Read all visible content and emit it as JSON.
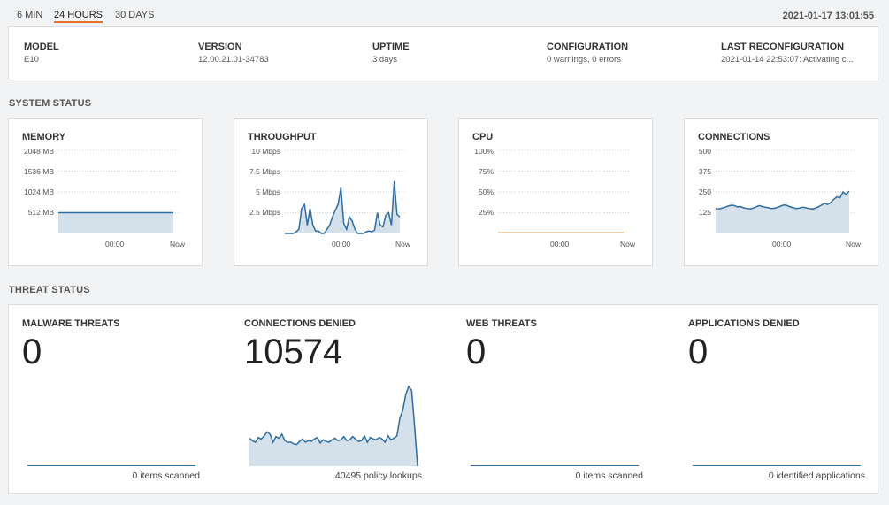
{
  "tabs": [
    {
      "label": "6 MIN",
      "active": false
    },
    {
      "label": "24 HOURS",
      "active": true
    },
    {
      "label": "30 DAYS",
      "active": false
    }
  ],
  "timestamp": "2021-01-17 13:01:55",
  "info": {
    "model": {
      "label": "MODEL",
      "value": "E10"
    },
    "version": {
      "label": "VERSION",
      "value": "12.00.21.01-34783"
    },
    "uptime": {
      "label": "UPTIME",
      "value": "3 days"
    },
    "configuration": {
      "label": "CONFIGURATION",
      "value": "0 warnings, 0 errors"
    },
    "last_reconfiguration": {
      "label": "LAST RECONFIGURATION",
      "value": "2021-01-14 22:53:07: Activating c..."
    }
  },
  "system_status": {
    "title": "SYSTEM STATUS",
    "memory": {
      "title": "MEMORY",
      "yticks": [
        "2048 MB",
        "1536 MB",
        "1024 MB",
        "512 MB"
      ],
      "xticks": [
        "00:00",
        "Now"
      ]
    },
    "throughput": {
      "title": "THROUGHPUT",
      "yticks": [
        "10 Mbps",
        "7.5 Mbps",
        "5 Mbps",
        "2.5 Mbps"
      ],
      "xticks": [
        "00:00",
        "Now"
      ]
    },
    "cpu": {
      "title": "CPU",
      "yticks": [
        "100%",
        "75%",
        "50%",
        "25%"
      ],
      "xticks": [
        "00:00",
        "Now"
      ]
    },
    "connections": {
      "title": "CONNECTIONS",
      "yticks": [
        "500",
        "375",
        "250",
        "125"
      ],
      "xticks": [
        "00:00",
        "Now"
      ]
    }
  },
  "threat_status": {
    "title": "THREAT STATUS",
    "malware": {
      "label": "MALWARE THREATS",
      "value": "0",
      "foot": "0 items scanned"
    },
    "connections_denied": {
      "label": "CONNECTIONS DENIED",
      "value": "10574",
      "foot": "40495 policy lookups"
    },
    "web_threats": {
      "label": "WEB THREATS",
      "value": "0",
      "foot": "0 items scanned"
    },
    "applications_denied": {
      "label": "APPLICATIONS DENIED",
      "value": "0",
      "foot": "0 identified applications"
    }
  },
  "colors": {
    "line": "#2e6da4",
    "fill": "#d5e1ea",
    "cpu_line": "#e8b27a",
    "accent": "#e8702a"
  },
  "chart_data": [
    {
      "type": "area",
      "title": "MEMORY",
      "ylim": [
        0,
        2048
      ],
      "ylabel": "MB",
      "series": [
        {
          "values": [
            512,
            512,
            512,
            512,
            512,
            512,
            512,
            512,
            512,
            512,
            512,
            512
          ]
        }
      ]
    },
    {
      "type": "area",
      "title": "THROUGHPUT",
      "ylim": [
        0,
        10
      ],
      "ylabel": "Mbps",
      "series": [
        {
          "values": [
            0,
            0,
            0,
            0,
            0.2,
            0.5,
            3,
            3.5,
            1,
            3,
            1,
            0.3,
            0.3,
            0,
            0,
            0.5,
            1,
            2,
            2.8,
            3.5,
            5.5,
            1.2,
            0.5,
            2,
            1.5,
            0.5,
            0,
            0,
            0,
            0.2,
            0.3,
            0.2,
            0.4,
            2.5,
            1,
            0.8,
            2.2,
            2.5,
            1,
            6.3,
            2.3,
            2
          ]
        }
      ]
    },
    {
      "type": "line",
      "title": "CPU",
      "ylim": [
        0,
        100
      ],
      "ylabel": "%",
      "series": [
        {
          "values": [
            1,
            1,
            1,
            1,
            1,
            1,
            1,
            1,
            1,
            1,
            1,
            1
          ]
        }
      ]
    },
    {
      "type": "area",
      "title": "CONNECTIONS",
      "ylim": [
        0,
        500
      ],
      "series": [
        {
          "values": [
            150,
            148,
            152,
            158,
            165,
            170,
            168,
            160,
            162,
            155,
            150,
            148,
            152,
            160,
            168,
            162,
            158,
            155,
            150,
            152,
            158,
            165,
            172,
            168,
            160,
            155,
            150,
            152,
            158,
            155,
            150,
            148,
            152,
            160,
            170,
            182,
            175,
            185,
            205,
            220,
            215,
            250,
            235,
            255
          ]
        }
      ]
    },
    {
      "type": "area",
      "title": "CONNECTIONS DENIED",
      "series": [
        {
          "values": [
            0.35,
            0.32,
            0.3,
            0.36,
            0.34,
            0.38,
            0.43,
            0.4,
            0.3,
            0.37,
            0.35,
            0.4,
            0.32,
            0.3,
            0.3,
            0.28,
            0.27,
            0.31,
            0.34,
            0.3,
            0.32,
            0.31,
            0.34,
            0.36,
            0.29,
            0.33,
            0.31,
            0.3,
            0.33,
            0.35,
            0.32,
            0.33,
            0.37,
            0.32,
            0.33,
            0.37,
            0.34,
            0.31,
            0.32,
            0.38,
            0.3,
            0.36,
            0.34,
            0.33,
            0.36,
            0.34,
            0.3,
            0.38,
            0.33,
            0.35,
            0.38,
            0.6,
            0.7,
            0.9,
            1.0,
            0.95,
            0.5,
            0
          ]
        }
      ]
    }
  ]
}
